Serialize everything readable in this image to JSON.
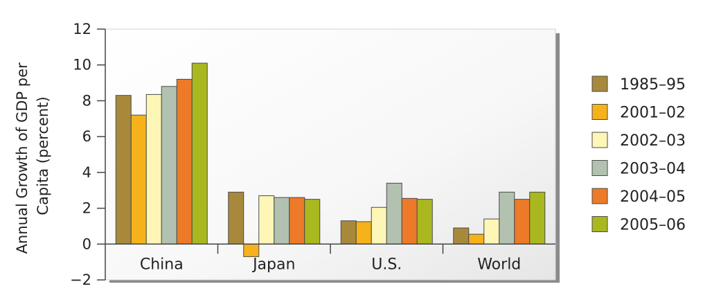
{
  "chart_data": {
    "type": "bar",
    "ylabel": "Annual Growth of GDP per Capita (percent)",
    "ylabel_lines": [
      "Annual Growth of GDP per",
      "Capita (percent)"
    ],
    "xlabel": "",
    "ylim": [
      -2,
      12
    ],
    "yticks": [
      12,
      10,
      8,
      6,
      4,
      2,
      0,
      -2
    ],
    "ytick_labels": [
      "12",
      "10",
      "8",
      "6",
      "4",
      "2",
      "0",
      "−2"
    ],
    "categories": [
      "China",
      "Japan",
      "U.S.",
      "World"
    ],
    "grid": false,
    "legend_position": "right",
    "series": [
      {
        "name": "1985–95",
        "color": "#a8893c",
        "values": [
          8.3,
          2.9,
          1.3,
          0.9
        ]
      },
      {
        "name": "2001–02",
        "color": "#f5b21b",
        "values": [
          7.2,
          -0.7,
          1.25,
          0.55
        ]
      },
      {
        "name": "2002–03",
        "color": "#fdf6b6",
        "values": [
          8.35,
          2.7,
          2.05,
          1.4
        ]
      },
      {
        "name": "2003–04",
        "color": "#b2c1b0",
        "values": [
          8.8,
          2.6,
          3.4,
          2.9
        ]
      },
      {
        "name": "2004–05",
        "color": "#ec7a28",
        "values": [
          9.2,
          2.6,
          2.55,
          2.5
        ]
      },
      {
        "name": "2005–06",
        "color": "#a9b81f",
        "values": [
          10.1,
          2.5,
          2.5,
          2.9
        ]
      }
    ]
  }
}
